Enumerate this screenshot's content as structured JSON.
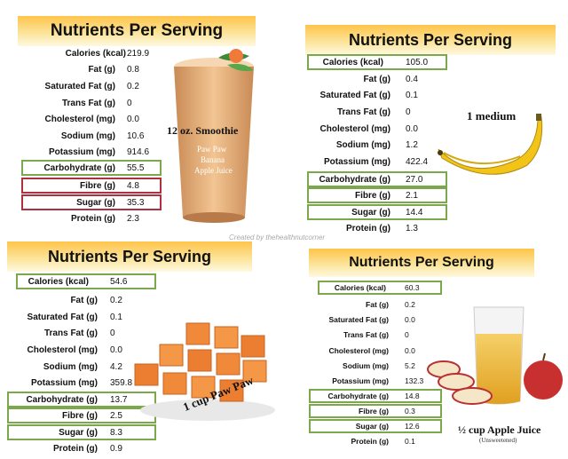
{
  "credit": "Created by thehealthnutcorner",
  "panels": [
    {
      "title": "Nutrients Per Serving",
      "serving": "12 oz. Smoothie",
      "ingredients": [
        "Paw Paw",
        "Banana",
        "Apple Juice"
      ],
      "rows": [
        {
          "label": "Calories (kcal)",
          "value": "219.9"
        },
        {
          "label": "Fat (g)",
          "value": "0.8"
        },
        {
          "label": "Saturated Fat (g)",
          "value": "0.2"
        },
        {
          "label": "Trans Fat (g)",
          "value": "0"
        },
        {
          "label": "Cholesterol (mg)",
          "value": "0.0"
        },
        {
          "label": "Sodium (mg)",
          "value": "10.6"
        },
        {
          "label": "Potassium (mg)",
          "value": "914.6"
        },
        {
          "label": "Carbohydrate (g)",
          "value": "55.5"
        },
        {
          "label": "Fibre (g)",
          "value": "4.8"
        },
        {
          "label": "Sugar (g)",
          "value": "35.3"
        },
        {
          "label": "Protein (g)",
          "value": "2.3"
        }
      ]
    },
    {
      "title": "Nutrients Per Serving",
      "serving": "1 medium",
      "rows": [
        {
          "label": "Calories (kcal)",
          "value": "105.0"
        },
        {
          "label": "Fat (g)",
          "value": "0.4"
        },
        {
          "label": "Saturated Fat (g)",
          "value": "0.1"
        },
        {
          "label": "Trans Fat (g)",
          "value": "0"
        },
        {
          "label": "Cholesterol (mg)",
          "value": "0.0"
        },
        {
          "label": "Sodium (mg)",
          "value": "1.2"
        },
        {
          "label": "Potassium (mg)",
          "value": "422.4"
        },
        {
          "label": "Carbohydrate (g)",
          "value": "27.0"
        },
        {
          "label": "Fibre (g)",
          "value": "2.1"
        },
        {
          "label": "Sugar (g)",
          "value": "14.4"
        },
        {
          "label": "Protein (g)",
          "value": "1.3"
        }
      ]
    },
    {
      "title": "Nutrients Per Serving",
      "serving": "1 cup Paw Paw",
      "rows": [
        {
          "label": "Calories (kcal)",
          "value": "54.6"
        },
        {
          "label": "Fat (g)",
          "value": "0.2"
        },
        {
          "label": "Saturated Fat (g)",
          "value": "0.1"
        },
        {
          "label": "Trans Fat (g)",
          "value": "0"
        },
        {
          "label": "Cholesterol (mg)",
          "value": "0.0"
        },
        {
          "label": "Sodium (mg)",
          "value": "4.2"
        },
        {
          "label": "Potassium (mg)",
          "value": "359.8"
        },
        {
          "label": "Carbohydrate (g)",
          "value": "13.7"
        },
        {
          "label": "Fibre (g)",
          "value": "2.5"
        },
        {
          "label": "Sugar (g)",
          "value": "8.3"
        },
        {
          "label": "Protein (g)",
          "value": "0.9"
        }
      ]
    },
    {
      "title": "Nutrients Per Serving",
      "serving": "½ cup Apple Juice",
      "serving_note": "(Unsweetened)",
      "rows": [
        {
          "label": "Calories (kcal)",
          "value": "60.3"
        },
        {
          "label": "Fat (g)",
          "value": "0.2"
        },
        {
          "label": "Saturated Fat (g)",
          "value": "0.0"
        },
        {
          "label": "Trans Fat (g)",
          "value": "0"
        },
        {
          "label": "Cholesterol (mg)",
          "value": "0.0"
        },
        {
          "label": "Sodium (mg)",
          "value": "5.2"
        },
        {
          "label": "Potassium (mg)",
          "value": "132.3"
        },
        {
          "label": "Carbohydrate (g)",
          "value": "14.8"
        },
        {
          "label": "Fibre (g)",
          "value": "0.3"
        },
        {
          "label": "Sugar (g)",
          "value": "12.6"
        },
        {
          "label": "Protein (g)",
          "value": "0.1"
        }
      ]
    }
  ]
}
